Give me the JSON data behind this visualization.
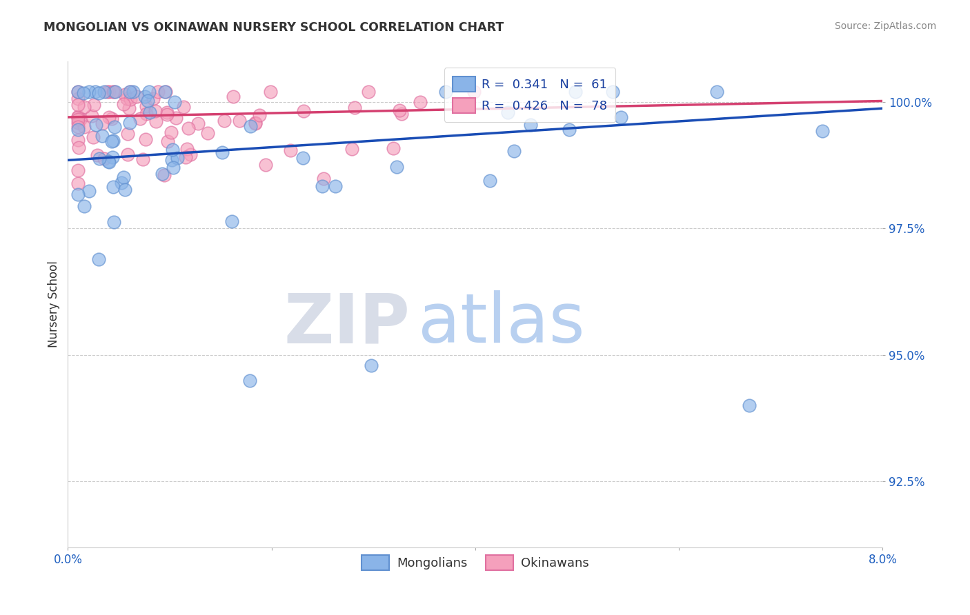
{
  "title": "MONGOLIAN VS OKINAWAN NURSERY SCHOOL CORRELATION CHART",
  "source": "Source: ZipAtlas.com",
  "ylabel": "Nursery School",
  "xlim": [
    0.0,
    0.08
  ],
  "ylim": [
    0.912,
    1.008
  ],
  "yticks": [
    0.925,
    0.95,
    0.975,
    1.0
  ],
  "ytick_labels": [
    "92.5%",
    "95.0%",
    "97.5%",
    "100.0%"
  ],
  "xticks": [
    0.0,
    0.02,
    0.04,
    0.06,
    0.08
  ],
  "xtick_labels": [
    "0.0%",
    "",
    "",
    "",
    "8.0%"
  ],
  "mongolian_R": 0.341,
  "mongolian_N": 61,
  "okinawan_R": 0.426,
  "okinawan_N": 78,
  "blue_color": "#8ab4e8",
  "blue_edge_color": "#6090d0",
  "blue_line_color": "#1a4db5",
  "pink_color": "#f5a0bc",
  "pink_edge_color": "#e070a0",
  "pink_line_color": "#d44070",
  "legend_blue_label": "R =  0.341   N =  61",
  "legend_pink_label": "R =  0.426   N =  78",
  "background_color": "#ffffff",
  "grid_color": "#cccccc",
  "watermark_zip": "ZIP",
  "watermark_atlas": "atlas",
  "watermark_zip_color": "#d8dde8",
  "watermark_atlas_color": "#b8d0f0"
}
